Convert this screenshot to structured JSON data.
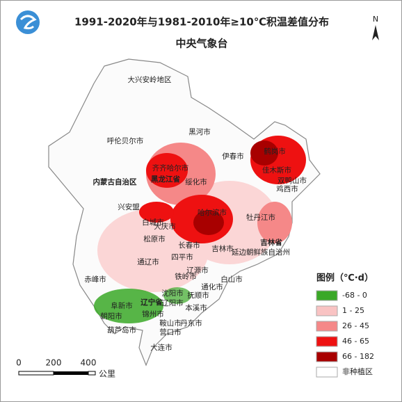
{
  "header": {
    "title": "1991-2020年与1981-2010年≥10℃积温差值分布",
    "subtitle": "中央气象台"
  },
  "north": "N",
  "places": [
    "大兴安岭地区",
    "呼伦贝尔市",
    "黑河市",
    "伊春市",
    "鹤岗市",
    "齐齐哈尔市",
    "黑龙江省",
    "绥化市",
    "佳木斯市",
    "双鸭山市",
    "鸡西市",
    "内蒙古自治区",
    "兴安盟",
    "哈尔滨市",
    "牡丹江市",
    "大庆市",
    "松原市",
    "长春市",
    "吉林市",
    "吉林省",
    "延边朝鲜族自治州",
    "白城市",
    "四平市",
    "辽源市",
    "通辽市",
    "铁岭市",
    "通化市",
    "白山市",
    "赤峰市",
    "沈阳市",
    "抚顺市",
    "辽宁省",
    "辽阳市",
    "本溪市",
    "阜新市",
    "朝阳市",
    "锦州市",
    "鞍山市",
    "丹东市",
    "葫芦岛市",
    "营口市",
    "大连市"
  ],
  "legend": {
    "title": "图例（℃·d）",
    "items": [
      {
        "label": "-68 - 0",
        "color": "#3aa827"
      },
      {
        "label": "1 - 25",
        "color": "#f9c3c3"
      },
      {
        "label": "26 - 45",
        "color": "#f58888"
      },
      {
        "label": "46 - 65",
        "color": "#ee1111"
      },
      {
        "label": "66 - 182",
        "color": "#a80000"
      },
      {
        "label": "非种植区",
        "color": "#ffffff"
      }
    ]
  },
  "scale": {
    "ticks": [
      "0",
      "200",
      "400"
    ],
    "unit": "公里"
  }
}
